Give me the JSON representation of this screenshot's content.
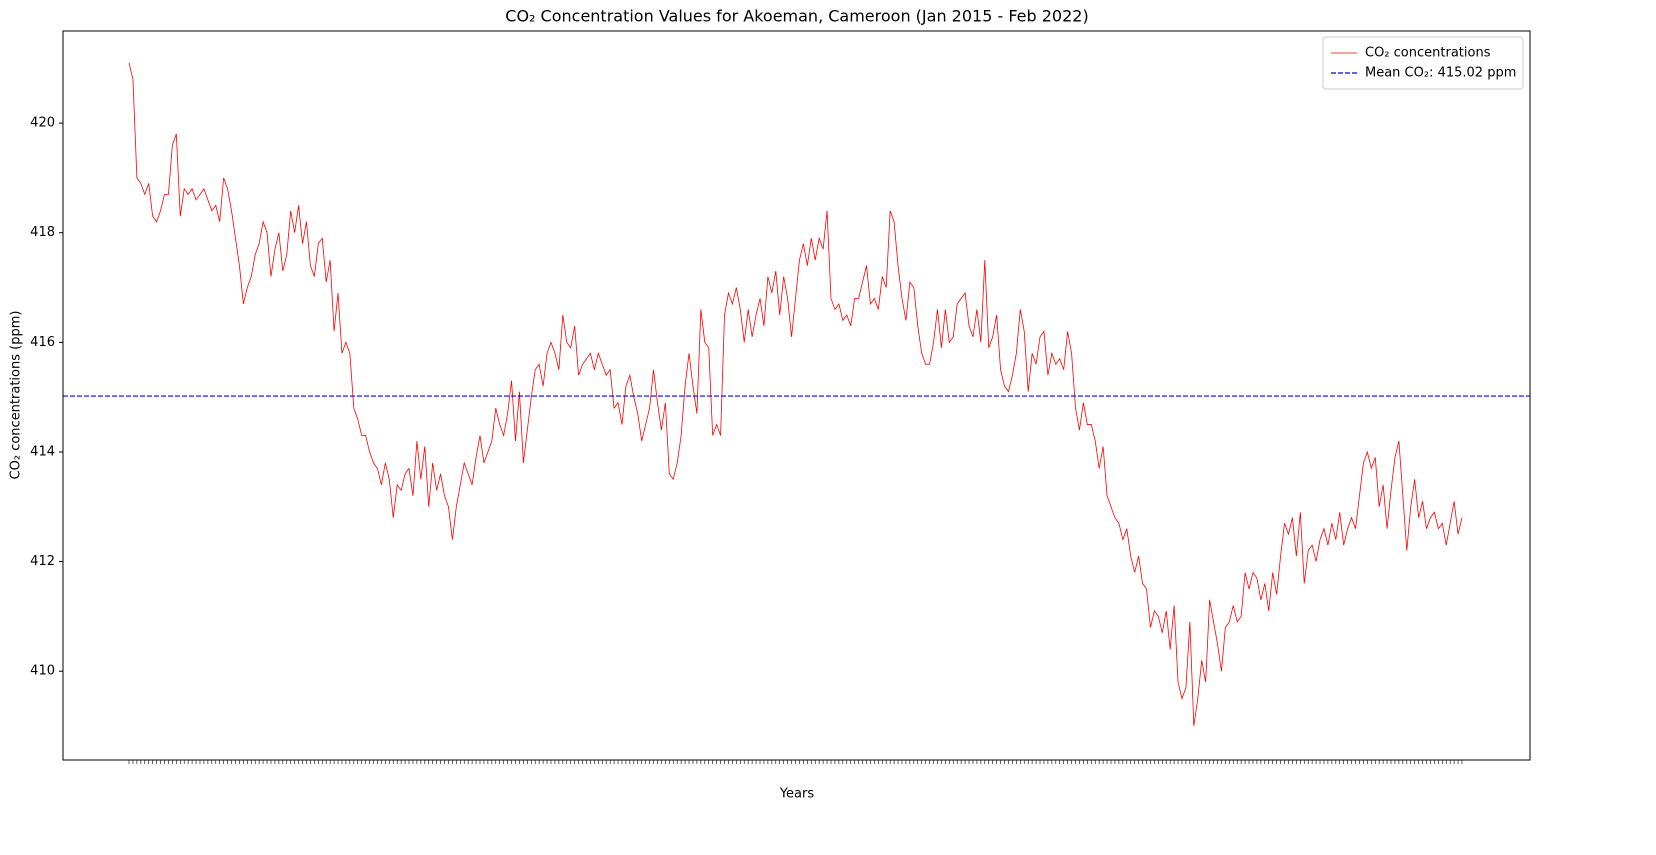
{
  "chart_data": {
    "type": "line",
    "title": "CO₂ Concentration Values for Akoeman, Cameroon (Jan 2015 - Feb 2022)",
    "x_label": "Years",
    "y_label": "CO₂ concentrations (ppm)",
    "ylim": [
      408.38,
      421.68
    ],
    "yticks": [
      410,
      412,
      414,
      416,
      418,
      420
    ],
    "legend": "upper right",
    "categories": [
      null,
      null,
      null,
      null,
      null,
      null,
      null,
      null,
      null,
      null,
      null,
      null,
      null,
      null,
      null,
      null,
      null,
      null,
      null,
      null,
      null,
      null,
      null,
      null,
      null,
      null,
      null,
      null,
      null,
      null,
      null,
      null,
      null,
      null,
      null,
      null,
      null,
      null,
      null,
      null,
      null,
      null,
      null,
      null,
      null,
      null,
      null,
      null,
      null,
      null,
      null,
      null,
      null,
      null,
      null,
      null,
      null,
      null,
      null,
      null,
      null,
      null,
      null,
      null,
      null,
      null,
      null,
      null,
      null,
      null,
      null,
      null,
      null,
      null,
      null,
      null,
      null,
      null,
      null,
      null,
      null,
      null,
      null,
      null,
      null,
      null,
      null,
      null,
      null,
      null,
      null,
      null,
      null,
      null,
      null,
      null,
      null,
      null,
      null,
      null,
      null,
      null,
      null,
      null,
      null,
      null,
      null,
      null,
      null,
      null,
      null,
      null,
      null,
      null,
      null,
      null,
      null,
      null,
      null,
      null,
      null,
      null,
      null,
      null,
      null,
      null,
      null,
      null,
      null,
      null,
      null,
      null,
      null,
      null,
      null,
      null,
      null,
      null,
      null,
      null,
      null,
      null,
      null,
      null,
      null,
      null,
      null,
      null,
      null,
      null,
      null,
      null,
      null,
      null,
      null,
      null,
      null,
      null,
      null,
      null,
      null,
      null,
      null,
      null,
      null,
      null,
      null,
      null,
      null,
      null,
      null,
      null,
      null,
      null,
      null,
      null,
      null,
      null,
      null,
      null,
      null,
      null,
      null,
      null,
      null,
      null,
      null,
      null,
      null,
      null,
      null,
      null,
      null,
      null,
      null,
      null,
      null,
      null,
      null,
      null,
      null,
      null,
      null,
      null,
      null,
      null,
      null,
      null,
      null,
      null,
      null,
      null,
      null,
      null,
      null,
      null,
      null,
      null,
      null,
      null,
      null,
      null,
      null,
      null,
      null,
      null,
      null,
      null,
      null,
      null,
      null,
      null,
      null,
      null,
      null,
      null,
      null,
      null,
      null,
      null,
      null,
      null,
      null,
      null,
      null,
      null,
      null,
      null,
      null,
      null,
      null,
      null,
      null,
      null,
      null,
      null,
      null,
      null,
      null,
      null,
      null,
      null,
      null,
      null,
      null,
      null,
      null,
      null,
      null,
      null,
      null,
      null,
      null,
      null,
      null,
      null,
      null,
      null,
      null,
      null,
      null,
      null,
      null,
      null,
      null,
      null,
      null,
      null,
      null,
      null,
      null,
      null,
      null,
      null,
      null,
      null,
      null,
      null,
      null,
      null,
      null,
      null,
      null,
      null,
      null,
      null,
      null,
      null,
      null,
      null,
      null,
      null,
      null,
      null,
      null,
      null,
      null,
      null,
      null,
      null,
      null,
      null,
      null,
      null,
      null,
      null,
      null,
      null,
      null,
      null,
      null,
      null,
      null,
      null,
      null,
      null,
      null,
      null,
      null
    ],
    "series": [
      {
        "name": "CO₂ concentrations",
        "color": "#ff0000",
        "values": [
          421.1,
          420.8,
          419.0,
          418.9,
          418.7,
          418.9,
          418.3,
          418.2,
          418.4,
          418.7,
          418.7,
          419.6,
          419.8,
          418.3,
          418.8,
          418.7,
          418.8,
          418.6,
          418.7,
          418.8,
          418.6,
          418.4,
          418.5,
          418.2,
          419.0,
          418.8,
          418.4,
          417.9,
          417.4,
          416.7,
          417.0,
          417.2,
          417.6,
          417.8,
          418.2,
          418.0,
          417.2,
          417.7,
          418.0,
          417.3,
          417.6,
          418.4,
          418.0,
          418.5,
          417.8,
          418.2,
          417.4,
          417.2,
          417.8,
          417.9,
          417.1,
          417.5,
          416.2,
          416.9,
          415.8,
          416.0,
          415.8,
          414.8,
          414.6,
          414.3,
          414.3,
          414.0,
          413.8,
          413.7,
          413.4,
          413.8,
          413.5,
          412.8,
          413.4,
          413.3,
          413.6,
          413.7,
          413.2,
          414.2,
          413.5,
          414.1,
          413.0,
          413.8,
          413.3,
          413.6,
          413.2,
          413.0,
          412.4,
          413.0,
          413.4,
          413.8,
          413.6,
          413.4,
          413.9,
          414.3,
          413.8,
          414.0,
          414.2,
          414.8,
          414.5,
          414.3,
          414.7,
          415.3,
          414.2,
          415.1,
          413.8,
          414.4,
          415.0,
          415.5,
          415.6,
          415.2,
          415.8,
          416.0,
          415.8,
          415.5,
          416.5,
          416.0,
          415.9,
          416.3,
          415.4,
          415.6,
          415.7,
          415.8,
          415.5,
          415.8,
          415.6,
          415.4,
          415.5,
          414.8,
          414.9,
          414.5,
          415.2,
          415.4,
          415.0,
          414.7,
          414.2,
          414.5,
          414.8,
          415.5,
          414.9,
          414.4,
          414.9,
          413.6,
          413.5,
          413.8,
          414.3,
          415.2,
          415.8,
          415.2,
          414.7,
          416.6,
          416.0,
          415.9,
          414.3,
          414.5,
          414.3,
          416.5,
          416.9,
          416.7,
          417.0,
          416.6,
          416.0,
          416.6,
          416.1,
          416.5,
          416.8,
          416.3,
          417.2,
          416.9,
          417.3,
          416.5,
          417.2,
          416.8,
          416.1,
          416.8,
          417.5,
          417.8,
          417.4,
          417.9,
          417.5,
          417.9,
          417.7,
          418.4,
          416.8,
          416.6,
          416.7,
          416.4,
          416.5,
          416.3,
          416.8,
          416.8,
          417.1,
          417.4,
          416.7,
          416.8,
          416.6,
          417.2,
          417.0,
          418.4,
          418.2,
          417.4,
          416.8,
          416.4,
          417.1,
          417.0,
          416.3,
          415.8,
          415.6,
          415.6,
          416.0,
          416.6,
          415.9,
          416.6,
          416.0,
          416.1,
          416.7,
          416.8,
          416.9,
          416.3,
          416.1,
          416.6,
          416.0,
          417.5,
          415.9,
          416.1,
          416.5,
          415.5,
          415.2,
          415.1,
          415.4,
          415.8,
          416.6,
          416.2,
          415.1,
          415.8,
          415.6,
          416.1,
          416.2,
          415.4,
          415.8,
          415.6,
          415.7,
          415.5,
          416.2,
          415.8,
          414.8,
          414.4,
          414.9,
          414.5,
          414.5,
          414.2,
          413.7,
          414.1,
          413.2,
          413.0,
          412.8,
          412.7,
          412.4,
          412.6,
          412.1,
          411.8,
          412.1,
          411.6,
          411.5,
          410.8,
          411.1,
          411.0,
          410.7,
          411.1,
          410.4,
          411.2,
          409.8,
          409.5,
          409.7,
          410.9,
          409.0,
          409.5,
          410.2,
          409.8,
          411.3,
          410.9,
          410.5,
          410.0,
          410.8,
          410.9,
          411.2,
          410.9,
          411.0,
          411.8,
          411.5,
          411.8,
          411.7,
          411.3,
          411.6,
          411.1,
          411.8,
          411.4,
          412.1,
          412.7,
          412.5,
          412.8,
          412.1,
          412.9,
          411.6,
          412.2,
          412.3,
          412.0,
          412.4,
          412.6,
          412.3,
          412.7,
          412.4,
          412.9,
          412.3,
          412.6,
          412.8,
          412.6,
          413.2,
          413.8,
          414.0,
          413.7,
          413.9,
          413.0,
          413.4,
          412.6,
          413.3,
          413.9,
          414.2,
          413.2,
          412.2,
          413.0,
          413.5,
          412.8,
          413.1,
          412.6,
          412.8,
          412.9,
          412.6,
          412.7,
          412.3,
          412.7,
          413.1,
          412.5,
          412.8
        ]
      }
    ],
    "hlines": [
      {
        "name": "Mean CO₂: 415.02 ppm",
        "value": 415.02,
        "color": "#0000ff",
        "style": "dashed"
      }
    ]
  }
}
